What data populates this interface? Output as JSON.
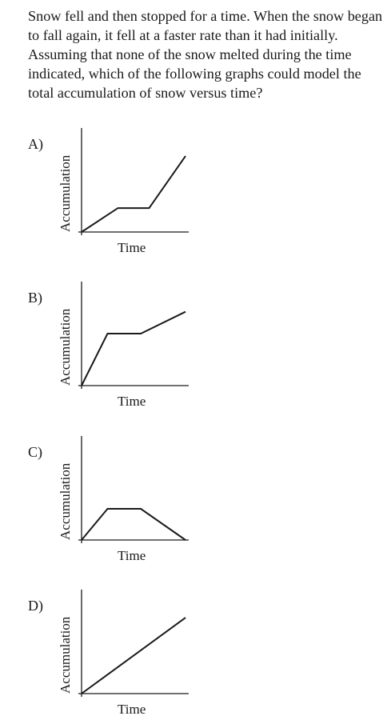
{
  "question": {
    "text": "Snow fell and then stopped for a time. When the snow began to fall again, it fell at a faster rate than it had initially. Assuming that none of the snow melted during the time indicated, which of the following graphs could model the total accumulation of snow versus time?"
  },
  "options": [
    {
      "letter": "A)",
      "xlabel": "Time",
      "ylabel": "Accumulation",
      "line": [
        [
          0,
          0
        ],
        [
          0.35,
          0.23
        ],
        [
          0.65,
          0.23
        ],
        [
          1.0,
          0.73
        ]
      ]
    },
    {
      "letter": "B)",
      "xlabel": "Time",
      "ylabel": "Accumulation",
      "line": [
        [
          0,
          0
        ],
        [
          0.25,
          0.5
        ],
        [
          0.57,
          0.5
        ],
        [
          1.0,
          0.71
        ]
      ]
    },
    {
      "letter": "C)",
      "xlabel": "Time",
      "ylabel": "Accumulation",
      "line": [
        [
          0,
          0
        ],
        [
          0.25,
          0.3
        ],
        [
          0.57,
          0.3
        ],
        [
          1.0,
          0.0
        ]
      ]
    },
    {
      "letter": "D)",
      "xlabel": "Time",
      "ylabel": "Accumulation",
      "line": [
        [
          0,
          0
        ],
        [
          1.0,
          0.73
        ]
      ]
    }
  ]
}
